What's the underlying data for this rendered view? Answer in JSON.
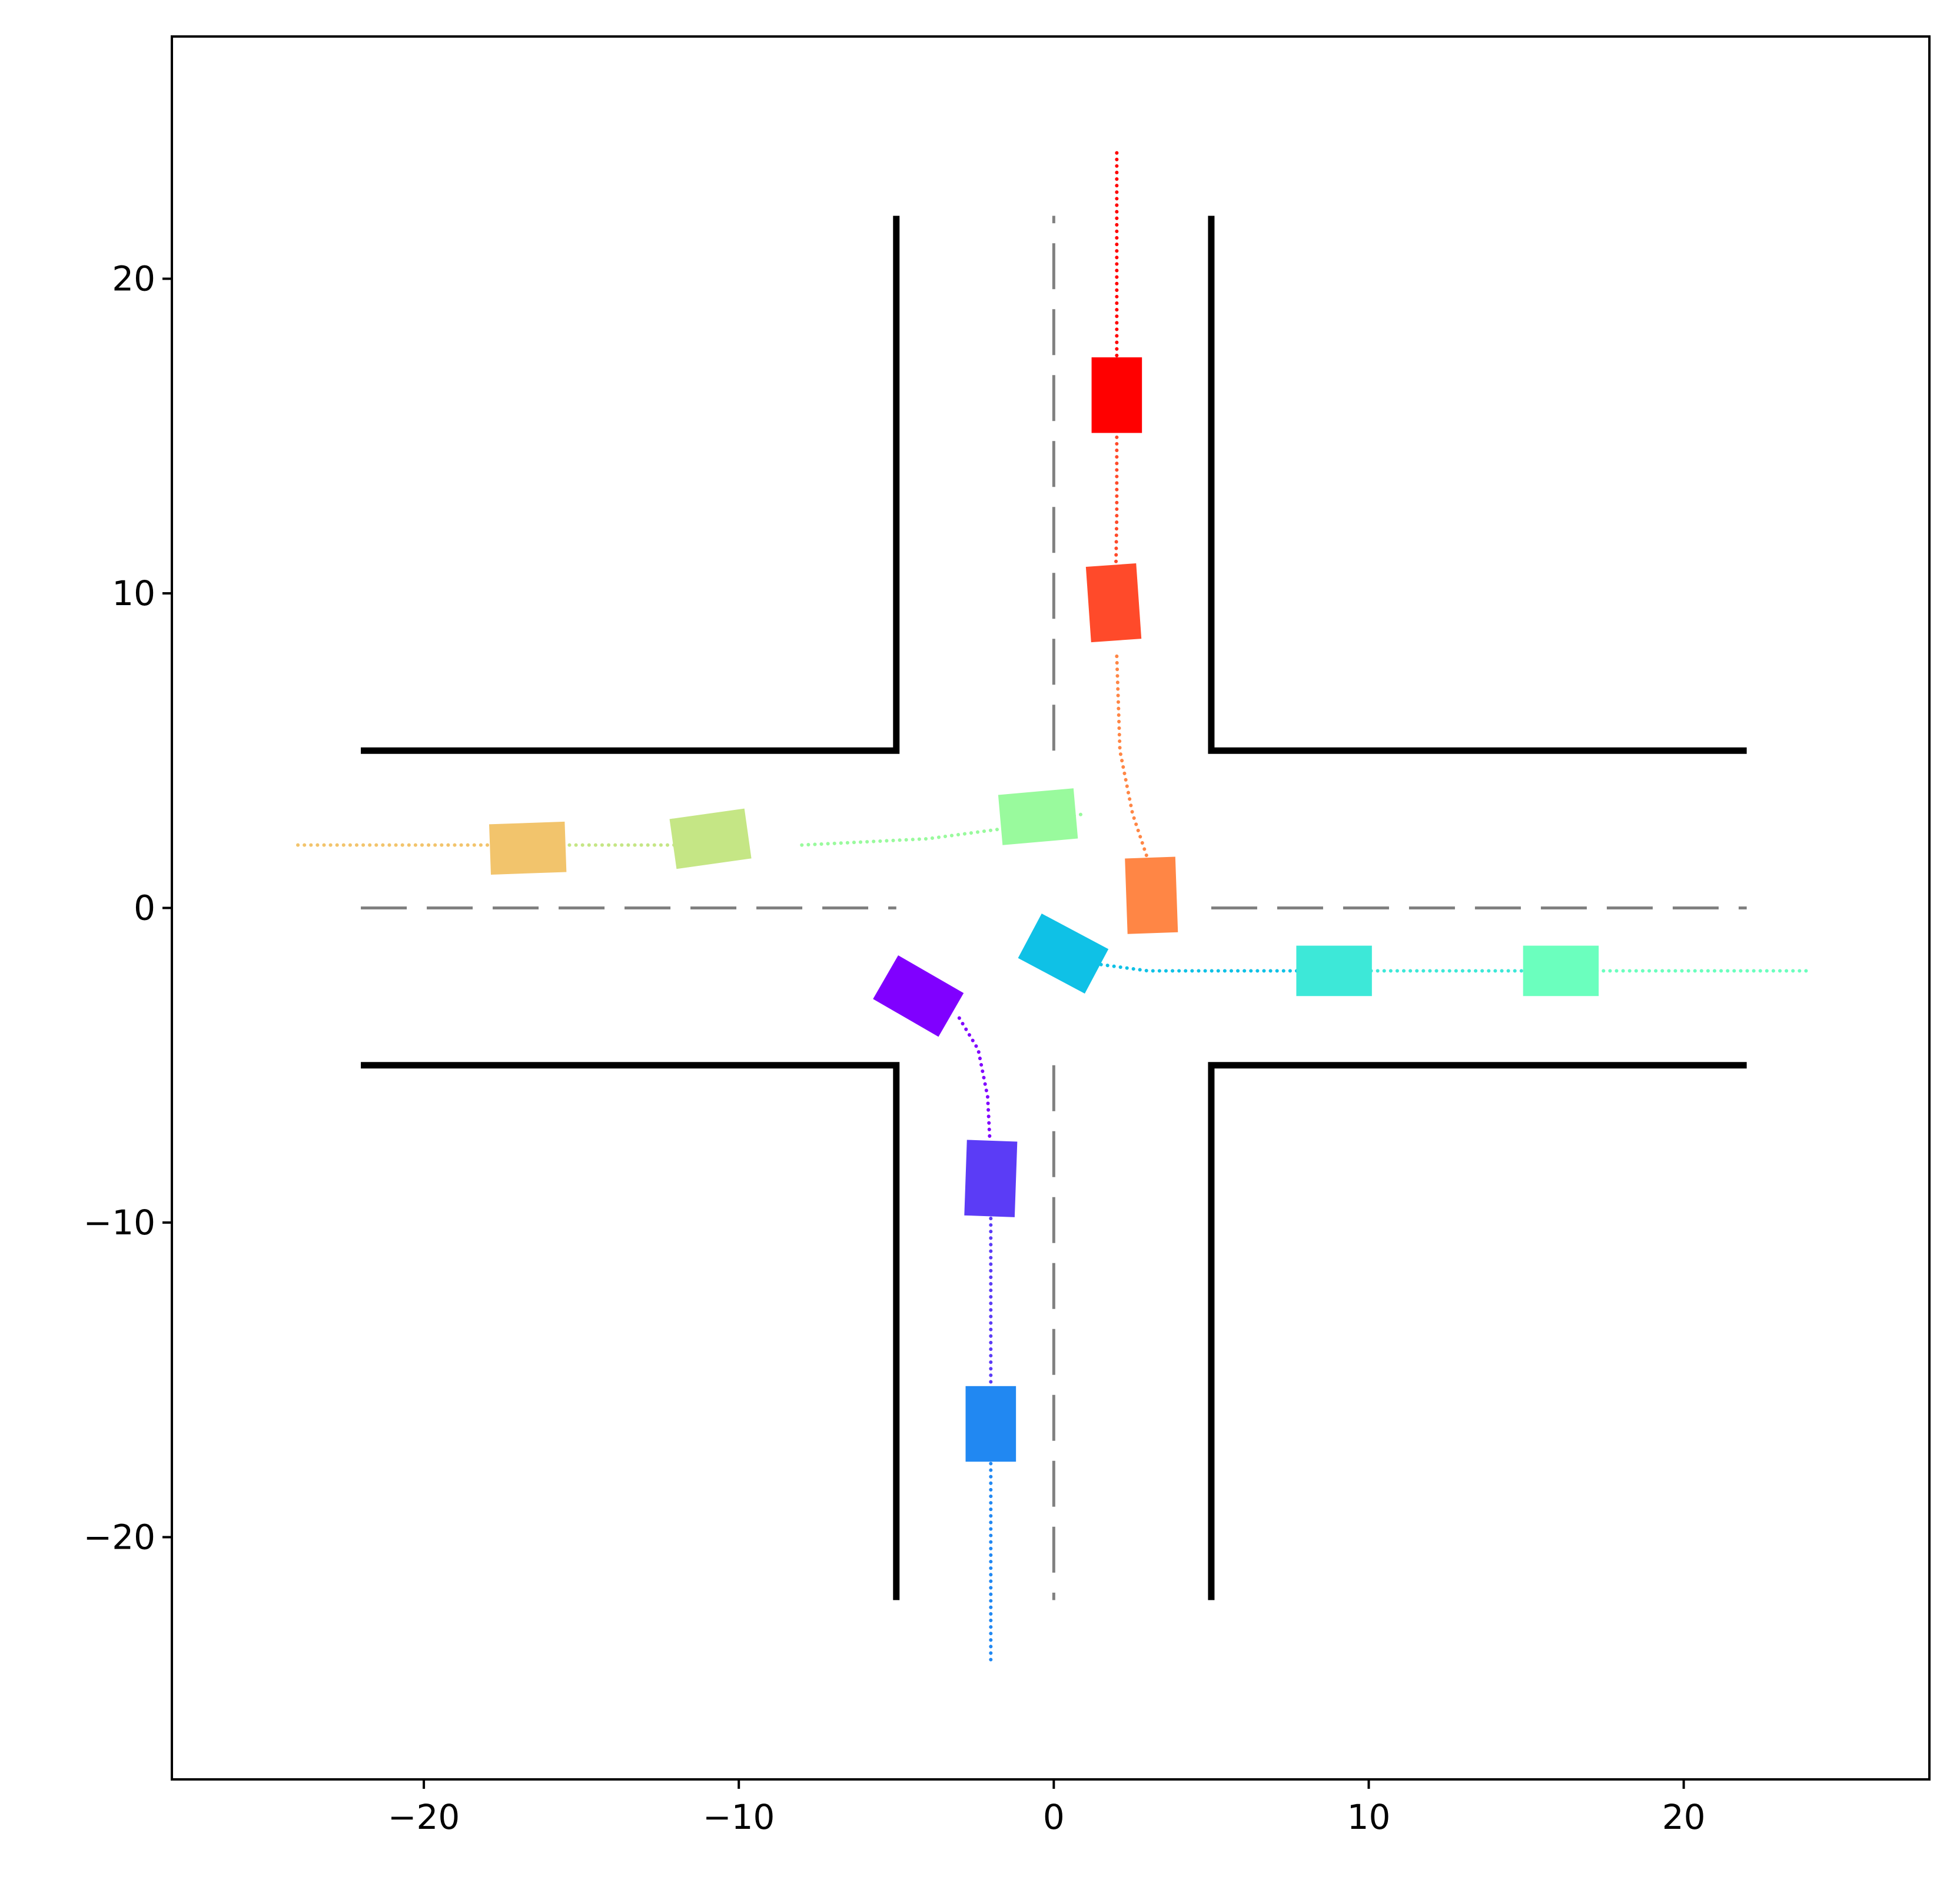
{
  "chart_data": {
    "type": "scatter",
    "title": "",
    "xlabel": "",
    "ylabel": "",
    "xlim": [
      -28,
      27.8
    ],
    "ylim": [
      -27.7,
      27.7
    ],
    "aspect": "equal",
    "grid": false,
    "legend": "none",
    "x_ticks": [
      {
        "value": -20,
        "label": "−20"
      },
      {
        "value": -10,
        "label": "−10"
      },
      {
        "value": 0,
        "label": "0"
      },
      {
        "value": 10,
        "label": "10"
      },
      {
        "value": 20,
        "label": "20"
      }
    ],
    "y_ticks": [
      {
        "value": 20,
        "label": "20"
      },
      {
        "value": 10,
        "label": "10"
      },
      {
        "value": 0,
        "label": "0"
      },
      {
        "value": -10,
        "label": "−10"
      },
      {
        "value": -20,
        "label": "−20"
      }
    ],
    "road": {
      "half_width": 5,
      "extent": 22,
      "edge_color": "#000000",
      "center_line_color": "#808080",
      "edges": [
        {
          "x": [
            -22,
            -5,
            -5
          ],
          "y": [
            5,
            5,
            22
          ]
        },
        {
          "x": [
            5,
            5,
            22
          ],
          "y": [
            22,
            5,
            5
          ]
        },
        {
          "x": [
            -22,
            -5,
            -5
          ],
          "y": [
            -5,
            -5,
            -22
          ]
        },
        {
          "x": [
            5,
            5,
            22
          ],
          "y": [
            -22,
            -5,
            -5
          ]
        }
      ],
      "center_lines": [
        {
          "x": [
            0,
            0
          ],
          "y": [
            5,
            22
          ]
        },
        {
          "x": [
            0,
            0
          ],
          "y": [
            -5,
            -22
          ]
        },
        {
          "x": [
            -22,
            -5
          ],
          "y": [
            0,
            0
          ]
        },
        {
          "x": [
            5,
            22
          ],
          "y": [
            0,
            0
          ]
        }
      ]
    },
    "vehicle_size": {
      "length": 2.4,
      "width": 1.6
    },
    "trajectories": [
      {
        "color": "#ff0000",
        "x": [
          2,
          2
        ],
        "y": [
          24,
          16
        ]
      },
      {
        "color": "#ff4a2a",
        "x": [
          2,
          2,
          1.95
        ],
        "y": [
          16,
          12.5,
          9.5
        ]
      },
      {
        "color": "#ff8645",
        "x": [
          2,
          2.1,
          2.5,
          3
        ],
        "y": [
          8,
          5,
          3,
          1.5
        ]
      },
      {
        "color": "#f2c46c",
        "x": [
          -24,
          -17.5
        ],
        "y": [
          2,
          2
        ]
      },
      {
        "color": "#c5e685",
        "x": [
          -16,
          -12,
          -10.5
        ],
        "y": [
          2,
          2,
          2
        ]
      },
      {
        "color": "#99fa9d",
        "x": [
          -8,
          -4,
          -1,
          1
        ],
        "y": [
          2,
          2.2,
          2.6,
          3
        ]
      },
      {
        "color": "#0fc1e6",
        "x": [
          1.5,
          3,
          6,
          8
        ],
        "y": [
          -1.8,
          -2,
          -2,
          -2
        ]
      },
      {
        "color": "#3de8d8",
        "x": [
          8,
          16
        ],
        "y": [
          -2,
          -2
        ]
      },
      {
        "color": "#6bffbe",
        "x": [
          16,
          24
        ],
        "y": [
          -2,
          -2
        ]
      },
      {
        "color": "#8000ff",
        "x": [
          -3,
          -2.4,
          -2.1,
          -2
        ],
        "y": [
          -3.5,
          -4.5,
          -6,
          -8
        ]
      },
      {
        "color": "#5b3cf6",
        "x": [
          -2,
          -2
        ],
        "y": [
          -8,
          -16
        ]
      },
      {
        "color": "#2188f2",
        "x": [
          -2,
          -2
        ],
        "y": [
          -16,
          -24
        ]
      }
    ],
    "vehicles": [
      {
        "color": "#ff0000",
        "x": 2,
        "y": 16.3,
        "heading": 90
      },
      {
        "color": "#ff4a2a",
        "x": 1.9,
        "y": 9.7,
        "heading": 94
      },
      {
        "color": "#ff8645",
        "x": 3.1,
        "y": 0.4,
        "heading": 92
      },
      {
        "color": "#f2c46c",
        "x": -16.7,
        "y": 1.9,
        "heading": 2
      },
      {
        "color": "#c5e685",
        "x": -10.9,
        "y": 2.2,
        "heading": 8
      },
      {
        "color": "#99fa9d",
        "x": -0.5,
        "y": 2.9,
        "heading": 5
      },
      {
        "color": "#0fc1e6",
        "x": 0.3,
        "y": -1.45,
        "heading": -28
      },
      {
        "color": "#3de8d8",
        "x": 8.9,
        "y": -2,
        "heading": 0
      },
      {
        "color": "#6bffbe",
        "x": 16.1,
        "y": -2,
        "heading": 0
      },
      {
        "color": "#8000ff",
        "x": -4.3,
        "y": -2.8,
        "heading": -30
      },
      {
        "color": "#5b3cf6",
        "x": -2.0,
        "y": -8.6,
        "heading": -92
      },
      {
        "color": "#2188f2",
        "x": -2.0,
        "y": -16.4,
        "heading": -90
      }
    ]
  }
}
